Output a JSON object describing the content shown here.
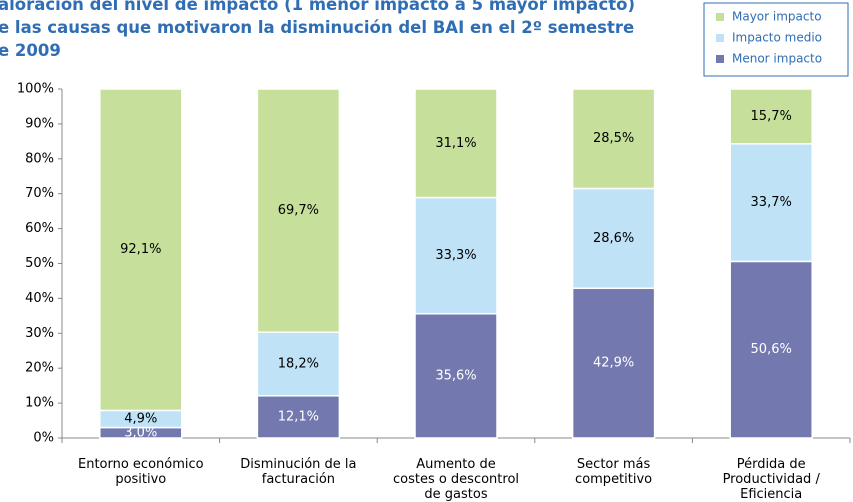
{
  "chart_data": {
    "type": "stacked_bar",
    "title": [
      "aloración del nivel de impacto (1 menor impacto a 5 mayor impacto)",
      "e las causas que motivaron la disminución del BAI en el 2º semestre",
      "e 2009"
    ],
    "categories": [
      "Entorno económico\npositivo",
      "Disminución de la\nfacturación",
      "Aumento de\ncostes o descontrol\nde gastos",
      "Sector más\ncompetitivo",
      "Pérdida de\nProductividad /\nEficiencia"
    ],
    "series": [
      {
        "name": "Menor impacto",
        "color": "#7378ae",
        "label_color": "#ffffff",
        "values": [
          3.0,
          12.1,
          35.6,
          42.9,
          50.6
        ],
        "value_labels": [
          "3,0%",
          "12,1%",
          "35,6%",
          "42,9%",
          "50,6%"
        ]
      },
      {
        "name": "Impacto medio",
        "color": "#bfe2f7",
        "label_color": "#000000",
        "values": [
          4.9,
          18.2,
          33.3,
          28.6,
          33.7
        ],
        "value_labels": [
          "4,9%",
          "18,2%",
          "33,3%",
          "28,6%",
          "33,7%"
        ]
      },
      {
        "name": "Mayor impacto",
        "color": "#c6e09c",
        "label_color": "#000000",
        "values": [
          92.1,
          69.7,
          31.1,
          28.5,
          15.7
        ],
        "value_labels": [
          "92,1%",
          "69,7%",
          "31,1%",
          "28,5%",
          "15,7%"
        ]
      }
    ],
    "ylim": [
      0,
      100
    ],
    "yticks": [
      {
        "value": 0,
        "label": "0%"
      },
      {
        "value": 10,
        "label": "10%"
      },
      {
        "value": 20,
        "label": "20%"
      },
      {
        "value": 30,
        "label": "30%"
      },
      {
        "value": 40,
        "label": "40%"
      },
      {
        "value": 50,
        "label": "50%"
      },
      {
        "value": 60,
        "label": "60%"
      },
      {
        "value": 70,
        "label": "70%"
      },
      {
        "value": 80,
        "label": "80%"
      },
      {
        "value": 90,
        "label": "90%"
      },
      {
        "value": 100,
        "label": "100%"
      }
    ],
    "legend": "top-right"
  }
}
